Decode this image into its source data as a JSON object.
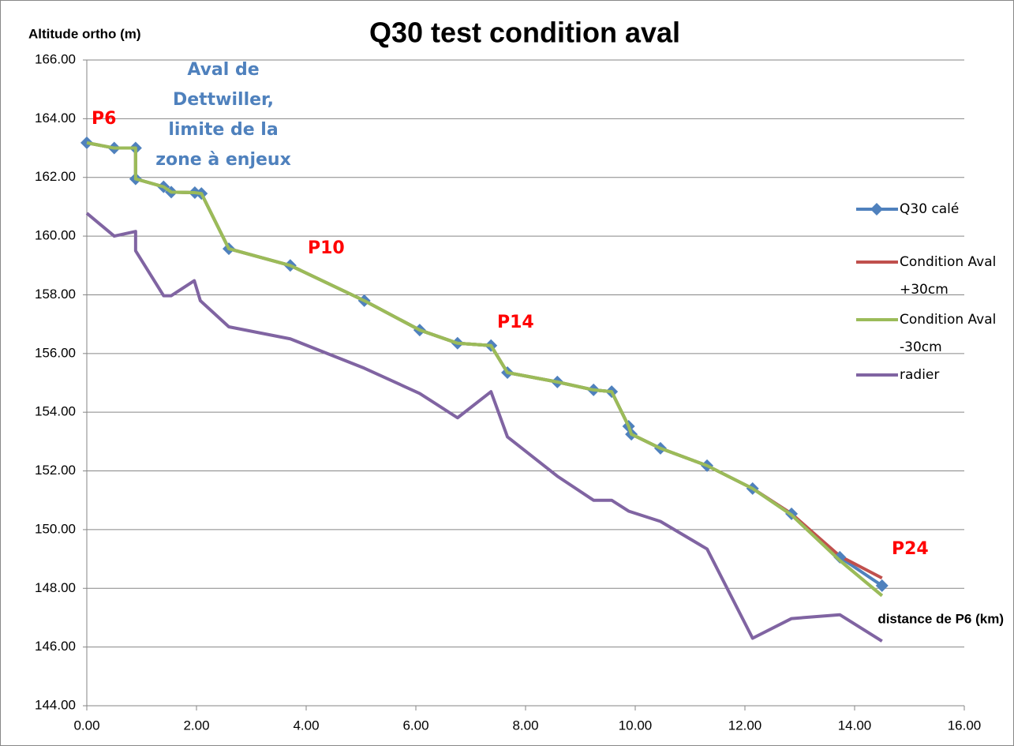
{
  "chart_data": {
    "type": "line",
    "title": "Q30 test condition aval",
    "y_label": "Altitude ortho (m)",
    "x_label": "distance de P6 (km)",
    "annotations": [
      "P6",
      "Aval de Dettwiller, limite de la zone à enjeux",
      "P10",
      "P14",
      "P24"
    ],
    "x": [
      0,
      0.5,
      0.89,
      0.89,
      1.4,
      1.54,
      1.97,
      2.09,
      2.59,
      3.71,
      5.06,
      6.07,
      6.76,
      7.37,
      7.67,
      8.58,
      9.24,
      9.57,
      9.88,
      9.93,
      10.46,
      11.31,
      12.14,
      12.85,
      13.73,
      14.5
    ],
    "series": [
      {
        "name": "Q30 calé",
        "color": "#4f81bd",
        "marker": "diamond",
        "values": [
          163.18,
          163.0,
          163.0,
          161.95,
          161.68,
          161.5,
          161.48,
          161.45,
          159.57,
          159.0,
          157.8,
          156.8,
          156.35,
          156.27,
          155.35,
          155.03,
          154.76,
          154.7,
          153.52,
          153.25,
          152.77,
          152.18,
          151.4,
          150.54,
          149.06,
          148.09
        ]
      },
      {
        "name": "Condition Aval +30cm",
        "color": "#c0504d",
        "values": [
          163.18,
          163.0,
          163.0,
          161.95,
          161.68,
          161.5,
          161.48,
          161.45,
          159.57,
          159.0,
          157.8,
          156.8,
          156.35,
          156.27,
          155.35,
          155.03,
          154.76,
          154.7,
          153.52,
          153.25,
          152.77,
          152.18,
          151.4,
          150.54,
          149.1,
          148.35
        ]
      },
      {
        "name": "Condition Aval -30cm",
        "color": "#9bbb59",
        "values": [
          163.18,
          163.0,
          163.0,
          161.95,
          161.68,
          161.5,
          161.48,
          161.45,
          159.57,
          159.0,
          157.8,
          156.8,
          156.35,
          156.27,
          155.35,
          155.03,
          154.76,
          154.7,
          153.52,
          153.25,
          152.77,
          152.18,
          151.4,
          150.5,
          148.95,
          147.75
        ]
      },
      {
        "name": "radier",
        "color": "#8064a2",
        "x": [
          0,
          0.5,
          0.89,
          0.89,
          1.4,
          1.54,
          1.96,
          2.07,
          2.59,
          3.71,
          5.06,
          6.07,
          6.76,
          7.37,
          7.67,
          8.58,
          9.24,
          9.57,
          9.88,
          10.46,
          11.31,
          12.14,
          12.85,
          13.73,
          14.5
        ],
        "values": [
          160.78,
          160.0,
          160.16,
          159.5,
          157.97,
          157.97,
          158.48,
          157.8,
          156.91,
          156.5,
          155.5,
          154.64,
          153.81,
          154.7,
          153.16,
          151.82,
          151.0,
          151.0,
          150.63,
          150.28,
          149.34,
          146.3,
          146.97,
          147.1,
          146.2
        ]
      }
    ],
    "xlim": [
      0,
      16
    ],
    "xticks": [
      {
        "value": 0,
        "label": "0.00"
      },
      {
        "value": 2,
        "label": "2.00"
      },
      {
        "value": 4,
        "label": "4.00"
      },
      {
        "value": 6,
        "label": "6.00"
      },
      {
        "value": 8,
        "label": "8.00"
      },
      {
        "value": 10,
        "label": "10.00"
      },
      {
        "value": 12,
        "label": "12.00"
      },
      {
        "value": 14,
        "label": "14.00"
      },
      {
        "value": 16,
        "label": "16.00"
      }
    ],
    "ylim": [
      144,
      166
    ],
    "yticks": [
      {
        "value": 144,
        "label": "144.00"
      },
      {
        "value": 146,
        "label": "146.00"
      },
      {
        "value": 148,
        "label": "148.00"
      },
      {
        "value": 150,
        "label": "150.00"
      },
      {
        "value": 152,
        "label": "152.00"
      },
      {
        "value": 154,
        "label": "154.00"
      },
      {
        "value": 156,
        "label": "156.00"
      },
      {
        "value": 158,
        "label": "158.00"
      },
      {
        "value": 160,
        "label": "160.00"
      },
      {
        "value": 162,
        "label": "162.00"
      },
      {
        "value": 164,
        "label": "164.00"
      },
      {
        "value": 166,
        "label": "166.00"
      }
    ],
    "grid": true,
    "legend": "right"
  }
}
